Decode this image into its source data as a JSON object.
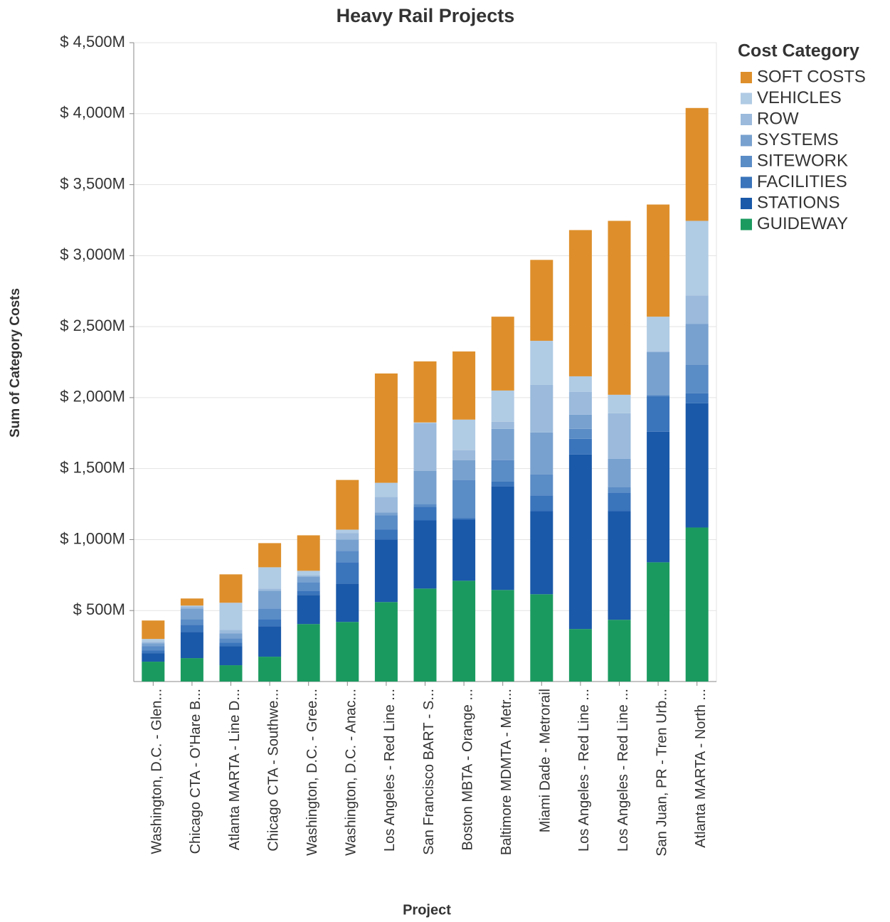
{
  "chart_data": {
    "type": "stacked_bar",
    "title": "Heavy Rail Projects",
    "x_label": "Project",
    "y_label": "Sum of Category Costs",
    "legend_title": "Cost Category",
    "categories": [
      "Washington, D.C. - Glen...",
      "Chicago CTA - O'Hare B...",
      "Atlanta MARTA - Line D...",
      "Chicago CTA - Southwe...",
      "Washington, D.C. - Gree...",
      "Washington, D.C. - Anac...",
      "Los Angeles - Red Line ...",
      "San Francisco BART - S...",
      "Boston MBTA - Orange ...",
      "Baltimore MDMTA - Metr...",
      "Miami Dade - Metrorail",
      "Los Angeles - Red Line ...",
      "Los Angeles - Red Line ...",
      "San Juan, PR - Tren Urb...",
      "Atlanta MARTA - North ..."
    ],
    "series": [
      {
        "name": "GUIDEWAY",
        "color": "#1b9a5f",
        "values": [
          140,
          165,
          115,
          175,
          405,
          420,
          560,
          655,
          710,
          645,
          615,
          370,
          435,
          840,
          1085
        ]
      },
      {
        "name": "STATIONS",
        "color": "#1a59a9",
        "values": [
          60,
          185,
          135,
          215,
          205,
          270,
          440,
          480,
          430,
          730,
          585,
          1230,
          765,
          920,
          875
        ]
      },
      {
        "name": "FACILITIES",
        "color": "#3a74bb",
        "values": [
          20,
          50,
          25,
          50,
          30,
          150,
          70,
          95,
          10,
          35,
          110,
          110,
          130,
          250,
          70
        ]
      },
      {
        "name": "SITEWORK",
        "color": "#5a8cc6",
        "values": [
          30,
          40,
          30,
          75,
          60,
          80,
          100,
          20,
          270,
          150,
          150,
          70,
          40,
          10,
          200
        ]
      },
      {
        "name": "SYSTEMS",
        "color": "#78a1cf",
        "values": [
          20,
          75,
          35,
          125,
          40,
          80,
          20,
          235,
          140,
          220,
          295,
          100,
          200,
          300,
          290
        ]
      },
      {
        "name": "ROW",
        "color": "#9bbadc",
        "values": [
          10,
          15,
          25,
          15,
          10,
          45,
          110,
          335,
          70,
          50,
          335,
          160,
          320,
          5,
          200
        ]
      },
      {
        "name": "VEHICLES",
        "color": "#b0cbe4",
        "values": [
          20,
          5,
          190,
          150,
          30,
          25,
          100,
          5,
          215,
          220,
          310,
          110,
          130,
          245,
          525
        ]
      },
      {
        "name": "SOFT COSTS",
        "color": "#de8f2b",
        "values": [
          130,
          50,
          200,
          170,
          250,
          350,
          770,
          430,
          480,
          520,
          570,
          1030,
          1225,
          790,
          795
        ]
      }
    ],
    "ylim": [
      0,
      4500
    ],
    "yticks": [
      {
        "value": 500,
        "label": "$ 500M"
      },
      {
        "value": 1000,
        "label": "$ 1,000M"
      },
      {
        "value": 1500,
        "label": "$ 1,500M"
      },
      {
        "value": 2000,
        "label": "$ 2,000M"
      },
      {
        "value": 2500,
        "label": "$ 2,500M"
      },
      {
        "value": 3000,
        "label": "$ 3,000M"
      },
      {
        "value": 3500,
        "label": "$ 3,500M"
      },
      {
        "value": 4000,
        "label": "$ 4,000M"
      },
      {
        "value": 4500,
        "label": "$ 4,500M"
      }
    ],
    "grid": true
  }
}
